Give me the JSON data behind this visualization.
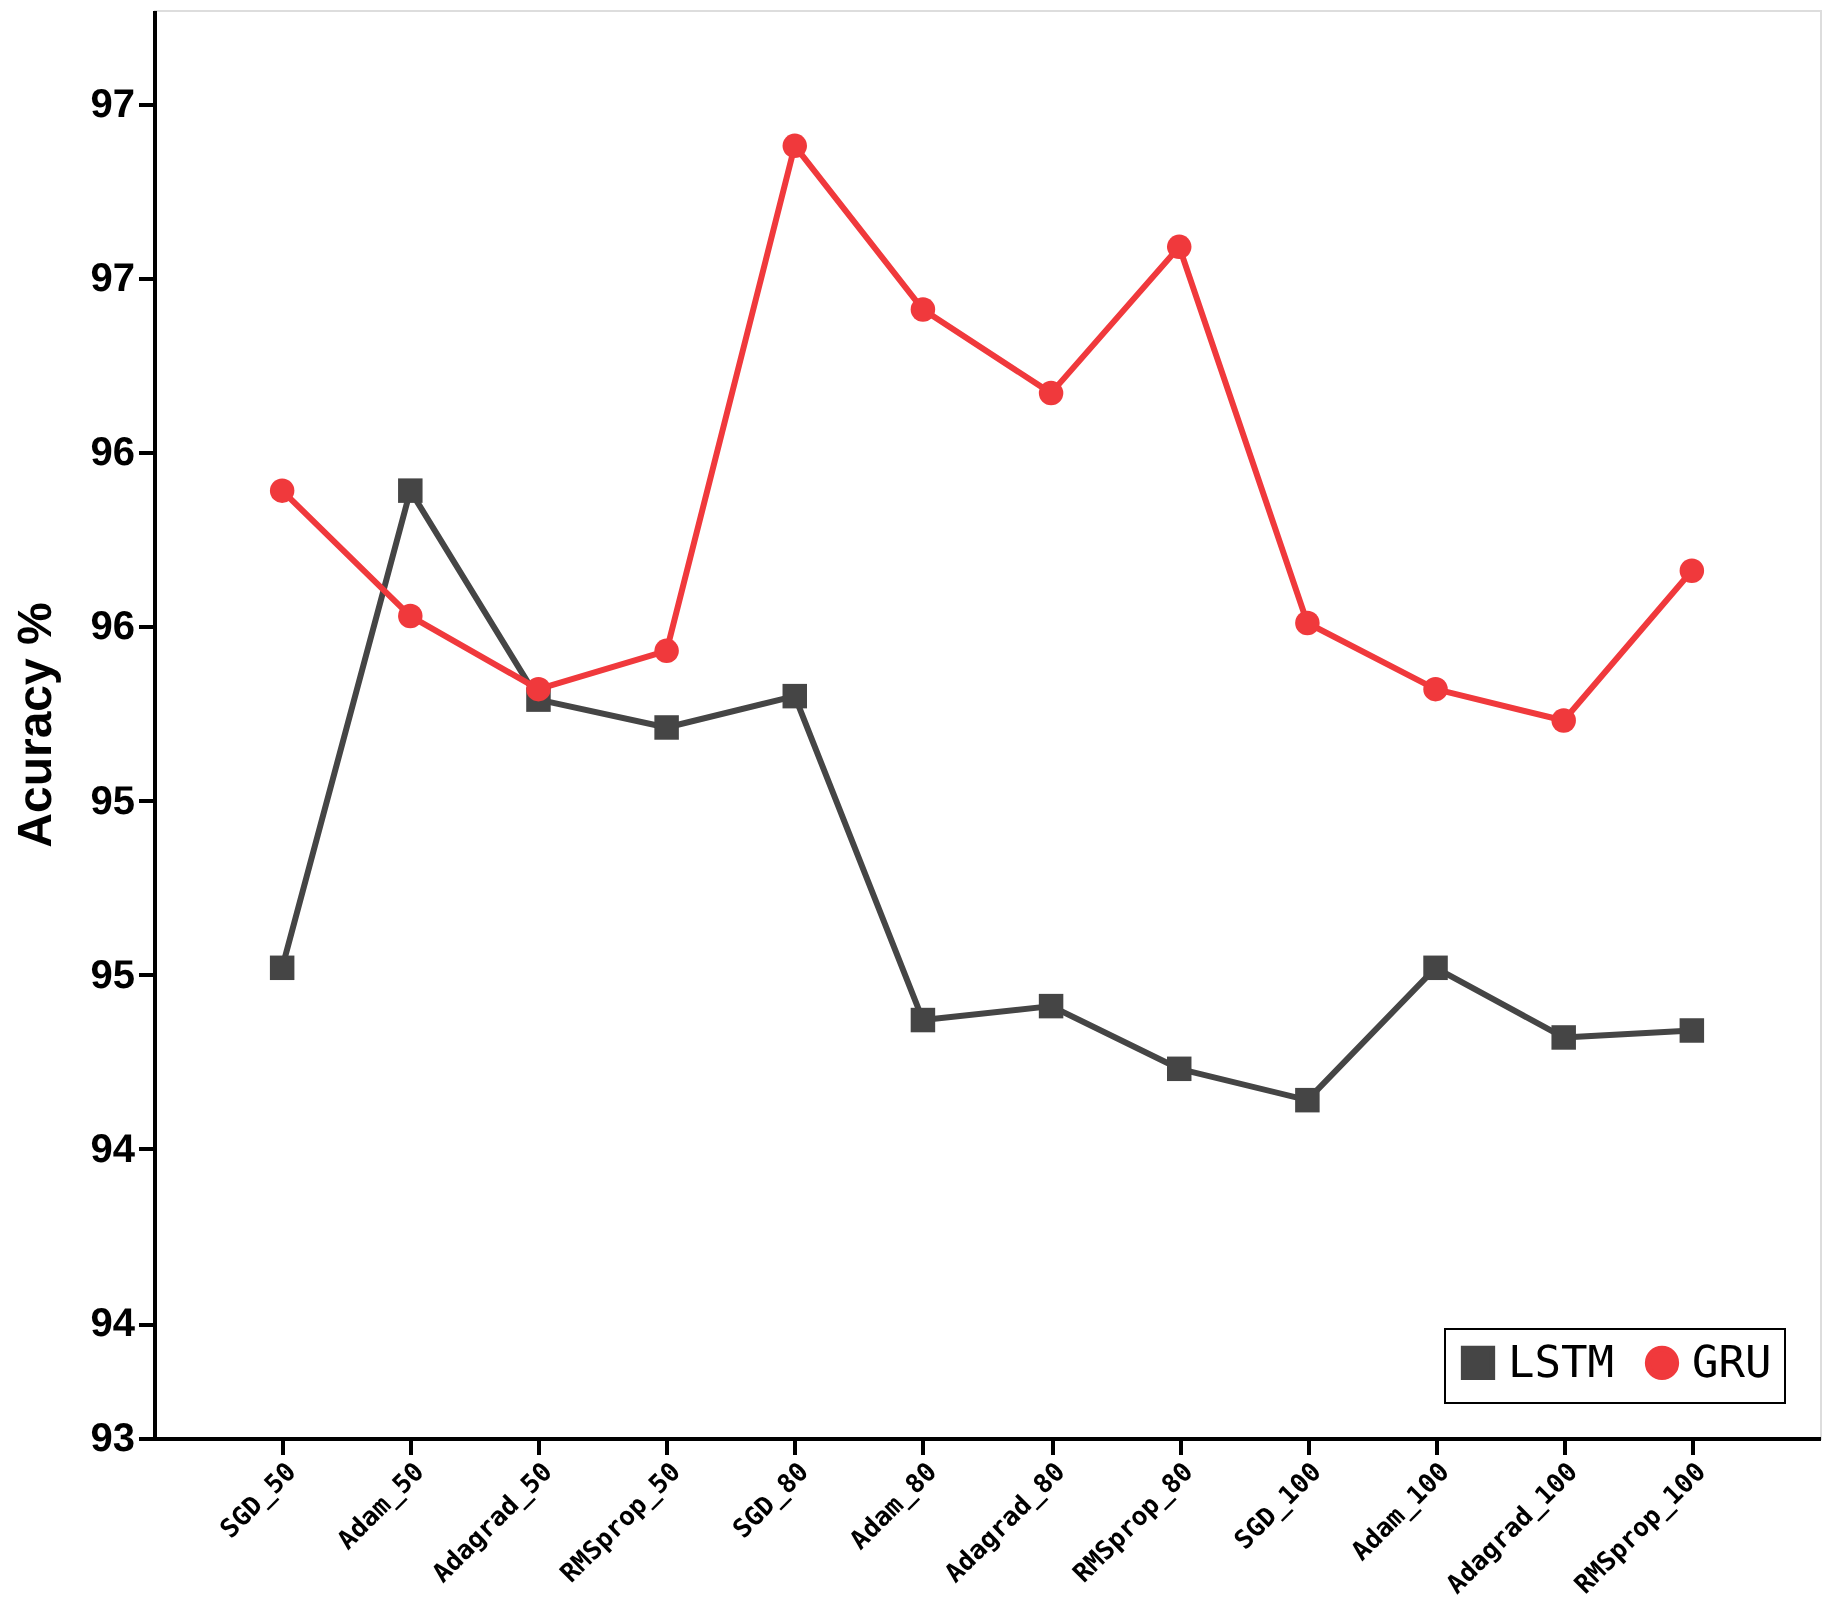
{
  "chart_data": {
    "type": "line",
    "ylabel": "Acuracy %",
    "categories": [
      "SGD_50",
      "Adam_50",
      "Adagrad_50",
      "RMSprop_50",
      "SGD_80",
      "Adam_80",
      "Adagrad_80",
      "RMSprop_80",
      "SGD_100",
      "Adam_100",
      "Adagrad_100",
      "RMSprop_100"
    ],
    "series": [
      {
        "name": "LSTM",
        "color": "#454545",
        "marker": "square",
        "values": [
          94.8,
          96.17,
          95.57,
          95.49,
          95.58,
          94.65,
          94.69,
          94.51,
          94.42,
          94.8,
          94.6,
          94.62
        ]
      },
      {
        "name": "GRU",
        "color": "#f0393c",
        "marker": "circle",
        "values": [
          96.17,
          95.81,
          95.6,
          95.71,
          97.16,
          96.69,
          96.45,
          96.87,
          95.79,
          95.6,
          95.51,
          95.94
        ]
      }
    ],
    "ylim": [
      93.45,
      97.55
    ],
    "yticks": [
      {
        "value": 93.45,
        "label": "93"
      },
      {
        "value": 93.78,
        "label": "94"
      },
      {
        "value": 94.28,
        "label": "94"
      },
      {
        "value": 94.78,
        "label": "95"
      },
      {
        "value": 95.28,
        "label": "95"
      },
      {
        "value": 95.78,
        "label": "96"
      },
      {
        "value": 96.28,
        "label": "96"
      },
      {
        "value": 96.78,
        "label": "97"
      },
      {
        "value": 97.28,
        "label": "97"
      }
    ],
    "grid": false,
    "legend": "bottom right",
    "line_style": "solid"
  }
}
